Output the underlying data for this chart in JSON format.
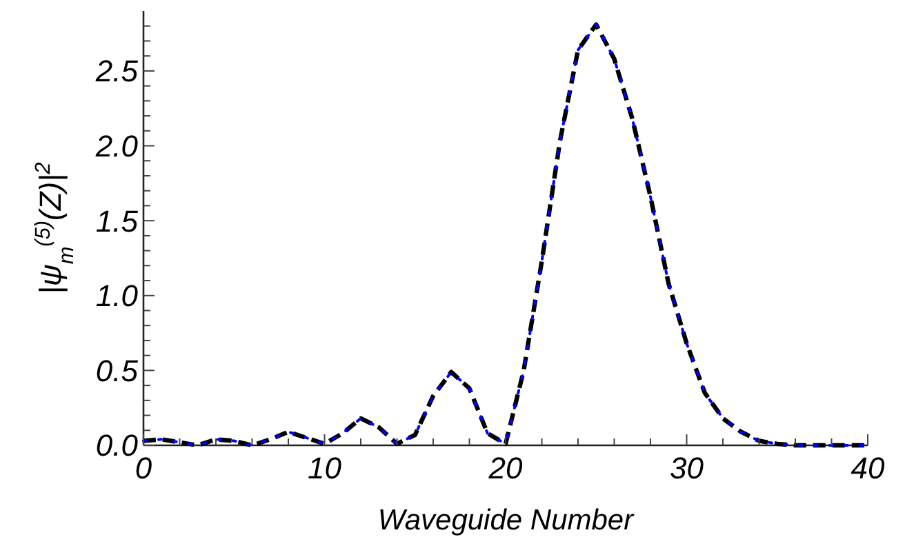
{
  "chart_data": {
    "type": "line",
    "xlabel": "Waveguide Number",
    "ylabel": "|ψ$_{m}$$^{(5)}$(Z)|$^{2}$",
    "x": [
      0,
      1,
      2,
      3,
      4,
      5,
      6,
      7,
      8,
      9,
      10,
      11,
      12,
      13,
      14,
      15,
      16,
      17,
      18,
      19,
      20,
      21,
      22,
      23,
      24,
      25,
      26,
      27,
      28,
      29,
      30,
      31,
      32,
      33,
      34,
      35,
      36,
      37,
      38,
      39,
      40
    ],
    "series": [
      {
        "color": "#000000",
        "line_style": "dashed",
        "values": [
          0.03,
          0.04,
          0.02,
          0.0,
          0.04,
          0.03,
          0.0,
          0.04,
          0.09,
          0.05,
          0.01,
          0.08,
          0.18,
          0.12,
          0.01,
          0.07,
          0.33,
          0.49,
          0.38,
          0.08,
          0.01,
          0.5,
          1.23,
          2.03,
          2.64,
          2.81,
          2.58,
          2.18,
          1.66,
          1.08,
          0.68,
          0.35,
          0.18,
          0.09,
          0.03,
          0.01,
          0.0,
          0.0,
          0.0,
          0.0,
          0.0
        ]
      },
      {
        "color": "#0000ff",
        "line_style": "dotted",
        "values": [
          0.03,
          0.04,
          0.02,
          0.0,
          0.04,
          0.03,
          0.0,
          0.04,
          0.09,
          0.05,
          0.01,
          0.08,
          0.18,
          0.12,
          0.01,
          0.07,
          0.33,
          0.49,
          0.38,
          0.08,
          0.01,
          0.5,
          1.23,
          2.03,
          2.64,
          2.81,
          2.58,
          2.18,
          1.66,
          1.08,
          0.68,
          0.35,
          0.18,
          0.09,
          0.03,
          0.01,
          0.0,
          0.0,
          0.0,
          0.0,
          0.0
        ]
      }
    ],
    "xlim": [
      0,
      40
    ],
    "ylim": [
      0,
      2.9
    ],
    "xticks": [
      0,
      {
        "value": 2,
        "label": null
      },
      {
        "value": 4,
        "label": null
      },
      {
        "value": 6,
        "label": null
      },
      {
        "value": 8,
        "label": null
      },
      10,
      {
        "value": 12,
        "label": null
      },
      {
        "value": 14,
        "label": null
      },
      {
        "value": 16,
        "label": null
      },
      {
        "value": 18,
        "label": null
      },
      20,
      {
        "value": 22,
        "label": null
      },
      {
        "value": 24,
        "label": null
      },
      {
        "value": 26,
        "label": null
      },
      {
        "value": 28,
        "label": null
      },
      30,
      {
        "value": 32,
        "label": null
      },
      {
        "value": 34,
        "label": null
      },
      {
        "value": 36,
        "label": null
      },
      {
        "value": 38,
        "label": null
      },
      40
    ],
    "yticks": [
      {
        "value": 0,
        "label": "0.0"
      },
      {
        "value": 0.1,
        "label": null
      },
      {
        "value": 0.2,
        "label": null
      },
      {
        "value": 0.3,
        "label": null
      },
      {
        "value": 0.4,
        "label": null
      },
      0.5,
      {
        "value": 0.6,
        "label": null
      },
      {
        "value": 0.7,
        "label": null
      },
      {
        "value": 0.8,
        "label": null
      },
      {
        "value": 0.9,
        "label": null
      },
      {
        "value": 1,
        "label": "1.0"
      },
      {
        "value": 1.1,
        "label": null
      },
      {
        "value": 1.2,
        "label": null
      },
      {
        "value": 1.3,
        "label": null
      },
      {
        "value": 1.4,
        "label": null
      },
      1.5,
      {
        "value": 1.6,
        "label": null
      },
      {
        "value": 1.7,
        "label": null
      },
      {
        "value": 1.8,
        "label": null
      },
      {
        "value": 1.9,
        "label": null
      },
      {
        "value": 2,
        "label": "2.0"
      },
      {
        "value": 2.1,
        "label": null
      },
      {
        "value": 2.2,
        "label": null
      },
      {
        "value": 2.3,
        "label": null
      },
      {
        "value": 2.4,
        "label": null
      },
      2.5,
      {
        "value": 2.6,
        "label": null
      },
      {
        "value": 2.7,
        "label": null
      },
      {
        "value": 2.8,
        "label": null
      }
    ],
    "grid": false,
    "marker": "none"
  }
}
